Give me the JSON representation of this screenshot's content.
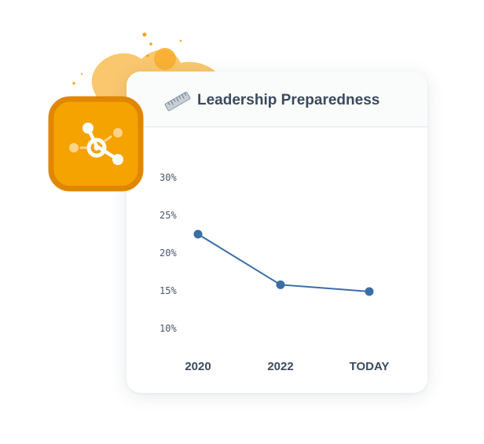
{
  "card": {
    "title": "Leadership Preparedness"
  },
  "icons": {
    "header": "ruler-icon",
    "badge": "network-hub-icon"
  },
  "colors": {
    "accent_orange": "#f5a300",
    "badge_border": "#e08600",
    "line": "#3a6ea5",
    "title_text": "#3b4a5c"
  },
  "chart_data": {
    "type": "line",
    "title": "Leadership Preparedness",
    "categories": [
      "2020",
      "2022",
      "TODAY"
    ],
    "values": [
      22.5,
      15.8,
      14.9
    ],
    "y_ticks": [
      "30%",
      "25%",
      "20%",
      "15%",
      "10%"
    ],
    "ylim": [
      10,
      30
    ],
    "grid": false
  }
}
